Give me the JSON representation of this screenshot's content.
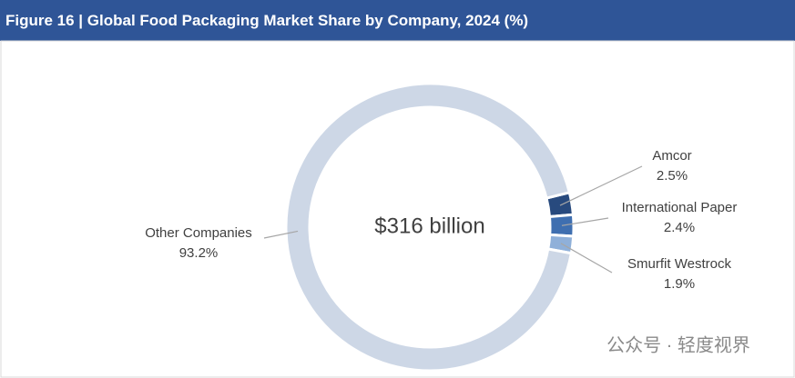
{
  "chart_data": {
    "type": "donut",
    "title": "Figure 16 | Global Food Packaging Market Share by Company, 2024 (%)",
    "center_label": "$316 billion",
    "categories": [
      "Amcor",
      "International Paper",
      "Smurfit Westrock",
      "Other Companies"
    ],
    "values": [
      2.5,
      2.4,
      1.9,
      93.2
    ],
    "value_labels": [
      "2.5%",
      "2.4%",
      "1.9%",
      "93.2%"
    ],
    "colors": [
      "#284a7e",
      "#3f6fb0",
      "#8fb0d9",
      "#cdd7e6"
    ]
  },
  "watermark": "公众号 · 轻度视界"
}
